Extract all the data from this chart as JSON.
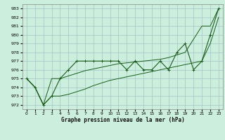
{
  "title": "Graphe pression niveau de la mer (hPa)",
  "bg_color": "#cceedd",
  "grid_color": "#aacccc",
  "line_color": "#1a5c1a",
  "xlim": [
    -0.5,
    23.5
  ],
  "ylim": [
    971.5,
    983.5
  ],
  "yticks": [
    972,
    973,
    974,
    975,
    976,
    977,
    978,
    979,
    980,
    981,
    982,
    983
  ],
  "xticks": [
    0,
    1,
    2,
    3,
    4,
    5,
    6,
    7,
    8,
    9,
    10,
    11,
    12,
    13,
    14,
    15,
    16,
    17,
    18,
    19,
    20,
    21,
    22,
    23
  ],
  "hours": [
    0,
    1,
    2,
    3,
    4,
    5,
    6,
    7,
    8,
    9,
    10,
    11,
    12,
    13,
    14,
    15,
    16,
    17,
    18,
    19,
    20,
    21,
    22,
    23
  ],
  "actual": [
    975,
    974,
    972,
    973,
    975,
    976,
    977,
    977,
    977,
    977,
    977,
    977,
    976,
    977,
    976,
    976,
    977,
    976,
    978,
    979,
    976,
    977,
    980,
    983
  ],
  "min_line": [
    975,
    974,
    972,
    973,
    973,
    973.2,
    973.5,
    973.8,
    974.2,
    974.5,
    974.8,
    975.0,
    975.2,
    975.4,
    975.6,
    975.8,
    976.0,
    976.2,
    976.4,
    976.6,
    976.8,
    977.0,
    979,
    982
  ],
  "max_line": [
    975,
    974,
    972,
    975,
    975,
    975.3,
    975.6,
    975.9,
    976.1,
    976.3,
    976.5,
    976.7,
    976.8,
    976.9,
    977.0,
    977.1,
    977.2,
    977.4,
    977.7,
    978.0,
    979.5,
    981,
    981,
    983
  ]
}
